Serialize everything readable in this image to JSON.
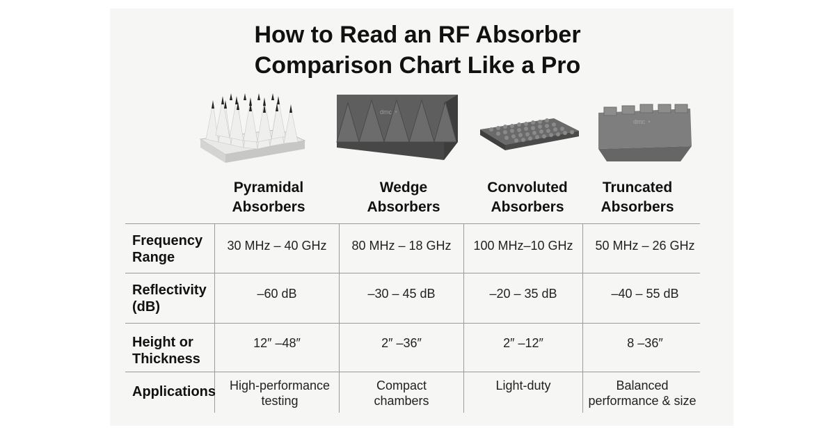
{
  "title": {
    "line1": "How to Read an RF Absorber",
    "line2": "Comparison Chart Like a Pro"
  },
  "images": {
    "pyramidal": "pyramidal-absorber-image",
    "wedge": "wedge-absorber-image",
    "convoluted": "convoluted-absorber-image",
    "truncated": "truncated-absorber-image",
    "logo_text": "dmc"
  },
  "columns": [
    {
      "line1": "Pyramidal",
      "line2": "Absorbers"
    },
    {
      "line1": "Wedge",
      "line2": "Absorbers"
    },
    {
      "line1": "Convoluted",
      "line2": "Absorbers"
    },
    {
      "line1": "Truncated",
      "line2": "Absorbers"
    }
  ],
  "rows": [
    {
      "label1": "Frequency",
      "label2": "Range",
      "cells": [
        [
          "30 MHz – 40 GHz"
        ],
        [
          "80 MHz – 18 GHz"
        ],
        [
          "100 MHz–10 GHz"
        ],
        [
          "50 MHz – 26 GHz"
        ]
      ]
    },
    {
      "label1": "Reflectivity",
      "label2": "(dB)",
      "cells": [
        [
          "–60 dB"
        ],
        [
          "–30 – 45 dB"
        ],
        [
          "–20 – 35 dB"
        ],
        [
          "–40 – 55 dB"
        ]
      ]
    },
    {
      "label1": "Height or",
      "label2": "Thickness",
      "cells": [
        [
          "12″ –48″"
        ],
        [
          "2″ –36″"
        ],
        [
          "2″ –12″"
        ],
        [
          "8 –36″"
        ]
      ]
    },
    {
      "label1": "Applications",
      "label2": "",
      "cells": [
        [
          "High-performance",
          "testing"
        ],
        [
          "Compact",
          "chambers"
        ],
        [
          "Light-duty",
          ""
        ],
        [
          "Balanced",
          "performance & size"
        ]
      ]
    }
  ],
  "colors": {
    "background": "#f6f6f5",
    "grid": "#9a9a9a",
    "text": "#111111"
  }
}
